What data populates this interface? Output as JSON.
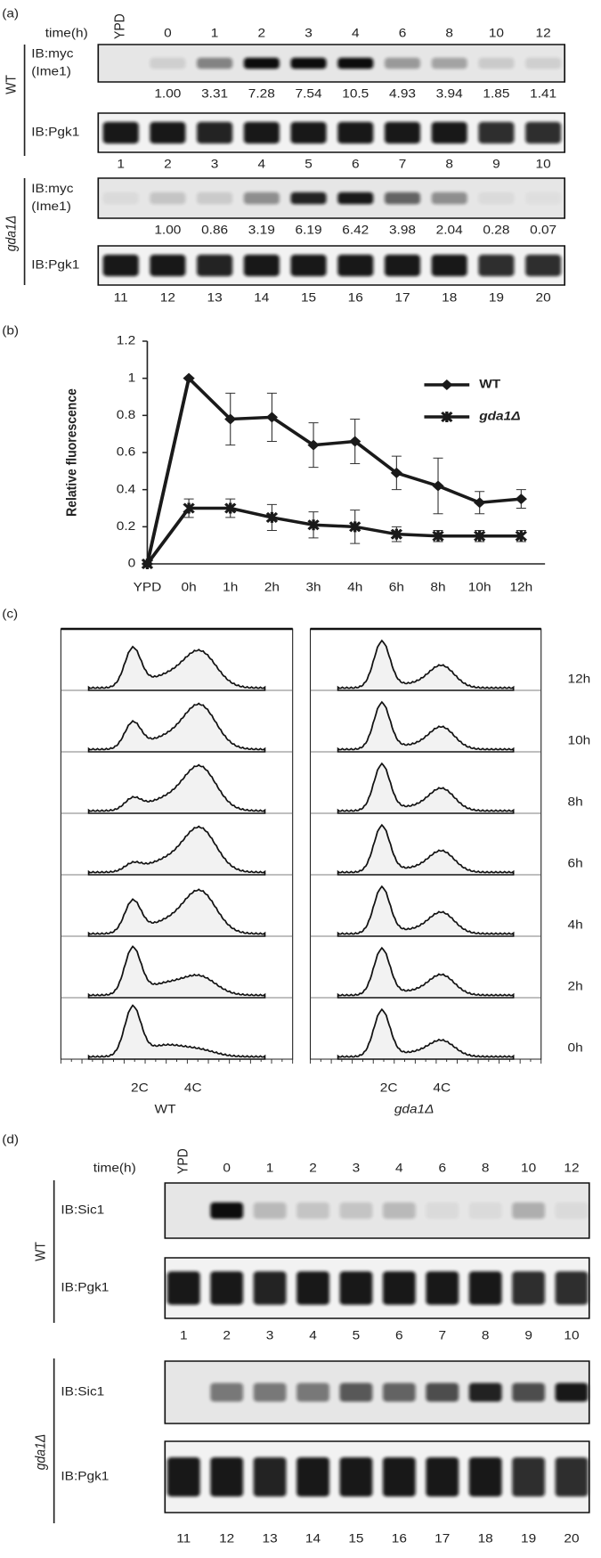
{
  "panel_a": {
    "label": "(a)",
    "time_label": "time(h)",
    "timepoints": [
      "YPD",
      "0",
      "1",
      "2",
      "3",
      "4",
      "6",
      "8",
      "10",
      "12"
    ],
    "groups": [
      {
        "strain": "WT",
        "target": [
          "IB:myc",
          "(Ime1)"
        ],
        "quant": [
          "1.00",
          "3.31",
          "7.28",
          "7.54",
          "10.5",
          "4.93",
          "3.94",
          "1.85",
          "1.41"
        ],
        "loading": "IB:Pgk1",
        "lanes": [
          "1",
          "2",
          "3",
          "4",
          "5",
          "6",
          "7",
          "8",
          "9",
          "10"
        ]
      },
      {
        "strain": "gda1Δ",
        "target": [
          "IB:myc",
          "(Ime1)"
        ],
        "quant": [
          "1.00",
          "0.86",
          "3.19",
          "6.19",
          "6.42",
          "3.98",
          "2.04",
          "0.28",
          "0.07"
        ],
        "loading": "IB:Pgk1",
        "lanes": [
          "11",
          "12",
          "13",
          "14",
          "15",
          "16",
          "17",
          "18",
          "19",
          "20"
        ]
      }
    ]
  },
  "panel_b": {
    "label": "(b)",
    "chart_data": {
      "type": "line",
      "y_label": "Relative fluorescence",
      "categories": [
        "YPD",
        "0h",
        "1h",
        "2h",
        "3h",
        "4h",
        "6h",
        "8h",
        "10h",
        "12h"
      ],
      "ylim": [
        0,
        1.2
      ],
      "yticks": [
        0,
        0.2,
        0.4,
        0.6,
        0.8,
        1,
        1.2
      ],
      "legend": "upper-right",
      "series": [
        {
          "name": "WT",
          "color": "#1a1a1a",
          "marker": "diamond",
          "values": [
            0,
            1,
            0.78,
            0.79,
            0.64,
            0.66,
            0.49,
            0.42,
            0.33,
            0.35
          ],
          "errors": [
            0,
            0,
            0.14,
            0.13,
            0.12,
            0.12,
            0.09,
            0.15,
            0.06,
            0.05
          ]
        },
        {
          "name": "gda1Δ",
          "color": "#1a1a1a",
          "marker": "star",
          "values": [
            0,
            0.3,
            0.3,
            0.25,
            0.21,
            0.2,
            0.16,
            0.15,
            0.15,
            0.15
          ],
          "errors": [
            0,
            0.05,
            0.05,
            0.07,
            0.07,
            0.09,
            0.04,
            0.03,
            0.03,
            0.03
          ]
        }
      ]
    }
  },
  "panel_c": {
    "label": "(c)",
    "times": [
      "12h",
      "10h",
      "8h",
      "6h",
      "4h",
      "2h",
      "0h"
    ],
    "dna_labels": [
      "2C",
      "4C"
    ],
    "strains": [
      "WT",
      "gda1Δ"
    ]
  },
  "panel_d": {
    "label": "(d)",
    "time_label": "time(h)",
    "timepoints": [
      "YPD",
      "0",
      "1",
      "2",
      "3",
      "4",
      "6",
      "8",
      "10",
      "12"
    ],
    "groups": [
      {
        "strain": "WT",
        "target": [
          "IB:Sic1"
        ],
        "loading": "IB:Pgk1",
        "lanes": [
          "1",
          "2",
          "3",
          "4",
          "5",
          "6",
          "7",
          "8",
          "9",
          "10"
        ]
      },
      {
        "strain": "gda1Δ",
        "target": [
          "IB:Sic1"
        ],
        "loading": "IB:Pgk1",
        "lanes": [
          "11",
          "12",
          "13",
          "14",
          "15",
          "16",
          "17",
          "18",
          "19",
          "20"
        ]
      }
    ]
  }
}
